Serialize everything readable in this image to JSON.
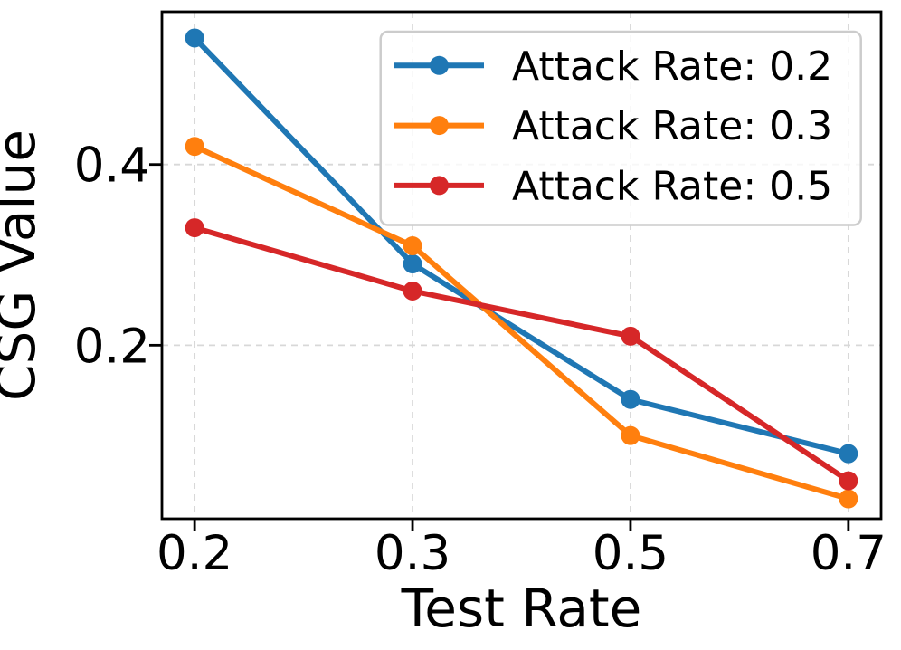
{
  "figure": {
    "background": "#ffffff",
    "spine_color": "#000000",
    "text_color": "#000000"
  },
  "chart_data": {
    "type": "line",
    "title": "",
    "xlabel": "Test Rate",
    "ylabel": "CSG Value",
    "categories": [
      "0.2",
      "0.3",
      "0.5",
      "0.7"
    ],
    "x_values": [
      0.2,
      0.3,
      0.5,
      0.7
    ],
    "x_spacing": "equal",
    "series": [
      {
        "name": "Attack Rate: 0.2",
        "color": "#1f77b4",
        "values": [
          0.54,
          0.29,
          0.14,
          0.08
        ]
      },
      {
        "name": "Attack Rate: 0.3",
        "color": "#ff7f0e",
        "values": [
          0.42,
          0.31,
          0.1,
          0.03
        ]
      },
      {
        "name": "Attack Rate: 0.5",
        "color": "#d62728",
        "values": [
          0.33,
          0.26,
          0.21,
          0.05
        ]
      }
    ],
    "yticks": [
      0.2,
      0.4
    ],
    "ytick_labels": [
      "0.2",
      "0.4"
    ],
    "ylim": [
      0.008,
      0.569
    ],
    "grid": {
      "visible": true,
      "style": "dashed",
      "color": "#d8d8d8"
    },
    "marker": "circle",
    "legend": {
      "location": "upper right",
      "border_color": "#cccccc",
      "background": "rgba(255,255,255,0.8)"
    }
  }
}
